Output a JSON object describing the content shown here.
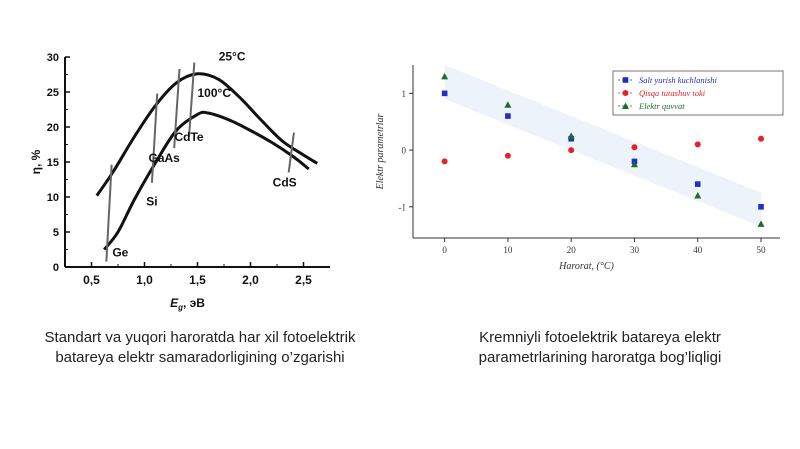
{
  "left_caption": {
    "line1": "Standart va yuqori haroratda har xil fotoelektrik",
    "line2": "batareya elektr samaradorligining o’zgarishi"
  },
  "right_caption": {
    "line1": "Kremniyli fotoelektrik batareya elektr",
    "line2": "parametrlarining haroratga bog’liqligi"
  },
  "chart_data": [
    {
      "type": "line",
      "ylabel": "η, %",
      "xlabel_main": "E",
      "xlabel_sub": "g",
      "xlabel_unit": ", эВ",
      "xlim": [
        0.25,
        2.75
      ],
      "ylim": [
        0,
        30
      ],
      "xticks": [
        0.5,
        1.0,
        1.5,
        2.0,
        2.5
      ],
      "xtick_labels": [
        "0,5",
        "1,0",
        "1,5",
        "2,0",
        "2,5"
      ],
      "yticks": [
        0,
        5,
        10,
        15,
        20,
        25,
        30
      ],
      "series": [
        {
          "name": "25°C",
          "x": [
            0.55,
            0.7,
            0.9,
            1.1,
            1.3,
            1.5,
            1.7,
            1.9,
            2.1,
            2.3,
            2.5,
            2.63
          ],
          "y": [
            10.2,
            13.5,
            18.5,
            23.0,
            26.3,
            27.6,
            26.8,
            24.2,
            21.0,
            18.0,
            16.0,
            14.8
          ]
        },
        {
          "name": "100°C",
          "x": [
            0.62,
            0.75,
            0.9,
            1.1,
            1.3,
            1.5,
            1.6,
            1.8,
            2.0,
            2.2,
            2.4,
            2.55
          ],
          "y": [
            2.5,
            5.0,
            9.5,
            14.8,
            19.5,
            21.8,
            22.0,
            21.0,
            19.5,
            17.8,
            15.8,
            14.0
          ]
        }
      ],
      "materials": [
        {
          "name": "Ge",
          "x": 0.66
        },
        {
          "name": "Si",
          "x": 1.09
        },
        {
          "name": "GaAs",
          "x": 1.3
        },
        {
          "name": "CdTe",
          "x": 1.44
        },
        {
          "name": "CdS",
          "x": 2.38
        }
      ]
    },
    {
      "type": "scatter",
      "xlabel": "Harorat, (°C)",
      "ylabel": "Elektr parametrlar",
      "xlim": [
        -5,
        53
      ],
      "ylim": [
        -1.55,
        1.5
      ],
      "xticks": [
        0,
        10,
        20,
        30,
        40,
        50
      ],
      "yticks": [
        -1,
        0,
        1
      ],
      "series": [
        {
          "name": "Salt yurish kuchlanishi",
          "color": "#1f2ecc",
          "marker": "square",
          "x": [
            0,
            10,
            20,
            30,
            40,
            50
          ],
          "y": [
            1.0,
            0.6,
            0.2,
            -0.2,
            -0.6,
            -1.0
          ]
        },
        {
          "name": "Qisqa tutashuv toki",
          "color": "#e0242b",
          "marker": "circle",
          "x": [
            0,
            10,
            20,
            30,
            40,
            50
          ],
          "y": [
            -0.2,
            -0.1,
            0.0,
            0.05,
            0.1,
            0.2
          ]
        },
        {
          "name": "Elektr quvvat",
          "color": "#1f6b2a",
          "marker": "triangle",
          "x": [
            0,
            10,
            20,
            30,
            40,
            50
          ],
          "y": [
            1.3,
            0.8,
            0.25,
            -0.25,
            -0.8,
            -1.3
          ]
        }
      ]
    }
  ]
}
